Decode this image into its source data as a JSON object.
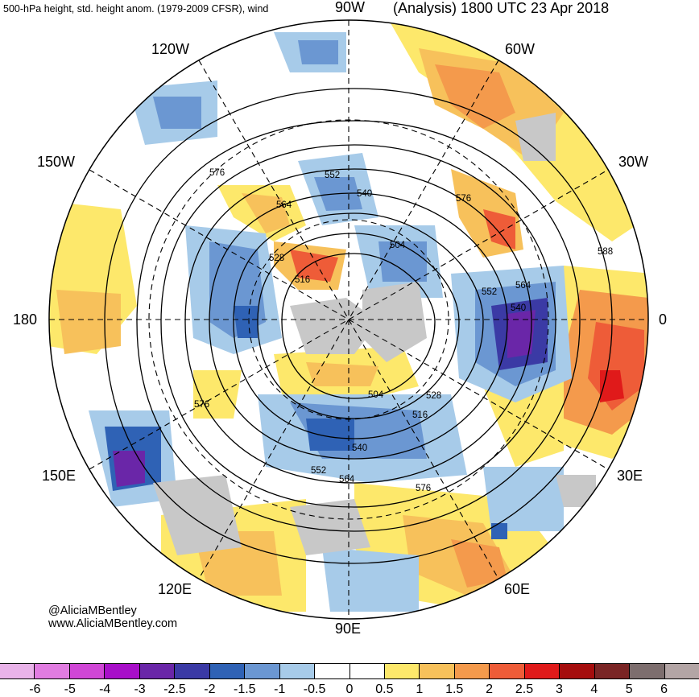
{
  "header": {
    "left_title": "500-hPa height, std. height anom. (1979-2009 CFSR), wind",
    "right_title": "(Analysis) 1800 UTC 23 Apr 2018"
  },
  "longitude_labels": {
    "top": "90W",
    "top_right": "60W",
    "right_upper": "30W",
    "right": "0",
    "right_lower": "30E",
    "bottom_right": "60E",
    "bottom": "90E",
    "bottom_left": "120E",
    "left_lower": "150E",
    "left": "180",
    "left_upper": "150W",
    "top_left": "120W"
  },
  "contour_labels": [
    "576",
    "552",
    "540",
    "564",
    "528",
    "516",
    "504",
    "576",
    "588",
    "552",
    "564",
    "540",
    "576",
    "504",
    "528",
    "516",
    "540",
    "552",
    "564",
    "576"
  ],
  "credit": {
    "handle": "@AliciaMBentley",
    "website": "www.AliciaMBentley.com"
  },
  "colorbar": {
    "colors": [
      "#e9b3e9",
      "#e17ce1",
      "#d046d6",
      "#a80fc9",
      "#6a26a8",
      "#3b3aa5",
      "#2f62b5",
      "#6b97d2",
      "#a7cbe9",
      "#ffffff",
      "#ffffff",
      "#fde86b",
      "#f7c15b",
      "#f49a4c",
      "#ee5c38",
      "#e01a1a",
      "#a50d0d",
      "#7a2525",
      "#7d6e6e",
      "#b3a5a5"
    ],
    "labels": [
      "-6",
      "-5",
      "-4",
      "-3",
      "-2.5",
      "-2",
      "-1.5",
      "-1",
      "-0.5",
      "0",
      "0.5",
      "1",
      "1.5",
      "2",
      "2.5",
      "3",
      "4",
      "5",
      "6"
    ]
  }
}
